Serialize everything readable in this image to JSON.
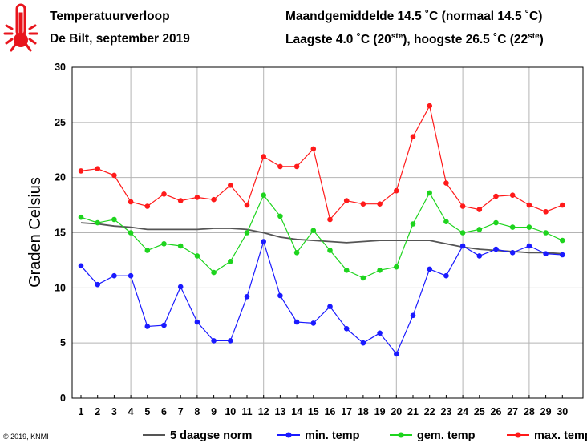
{
  "header": {
    "title": "Temperatuurverloop",
    "subtitle": "De Bilt, september 2019",
    "summary1": "Maandgemiddelde 14.5 ˚C (normaal 14.5 ˚C)",
    "summary2_prefix": "Laagste 4.0 ˚C (20",
    "summary2_sup1": "ste",
    "summary2_mid": "), hoogste 26.5 ˚C (22",
    "summary2_sup2": "ste",
    "summary2_suffix": ")"
  },
  "logo": {
    "icon": "thermometer-icon",
    "color": "#e8141c"
  },
  "footer": {
    "copyright": "© 2019, KNMI"
  },
  "chart_data": {
    "type": "line",
    "ylabel": "Graden Celsius",
    "ylim": [
      0,
      30
    ],
    "yticks": [
      0,
      5,
      10,
      15,
      20,
      25,
      30
    ],
    "x": [
      1,
      2,
      3,
      4,
      5,
      6,
      7,
      8,
      9,
      10,
      11,
      12,
      13,
      14,
      15,
      16,
      17,
      18,
      19,
      20,
      21,
      22,
      23,
      24,
      25,
      26,
      27,
      28,
      29,
      30
    ],
    "grid": true,
    "legend_position": "bottom",
    "series": [
      {
        "name": "5 daagse norm",
        "color": "#555555",
        "markers": false,
        "values": [
          15.9,
          15.8,
          15.6,
          15.5,
          15.3,
          15.3,
          15.3,
          15.3,
          15.4,
          15.4,
          15.3,
          15.0,
          14.6,
          14.4,
          14.3,
          14.2,
          14.1,
          14.2,
          14.3,
          14.3,
          14.3,
          14.3,
          14.0,
          13.7,
          13.5,
          13.4,
          13.3,
          13.2,
          13.2,
          13.1
        ]
      },
      {
        "name": "min. temp",
        "color": "#1a1aff",
        "markers": true,
        "values": [
          12.0,
          10.3,
          11.1,
          11.1,
          6.5,
          6.6,
          10.1,
          6.9,
          5.2,
          5.2,
          9.2,
          14.2,
          9.3,
          6.9,
          6.8,
          8.3,
          6.3,
          5.0,
          5.9,
          4.0,
          7.5,
          11.7,
          11.1,
          13.8,
          12.9,
          13.5,
          13.2,
          13.8,
          13.1,
          13.0
        ]
      },
      {
        "name": "gem. temp",
        "color": "#1ed41e",
        "markers": true,
        "values": [
          16.4,
          15.9,
          16.2,
          15.0,
          13.4,
          14.0,
          13.8,
          12.9,
          11.4,
          12.4,
          15.0,
          18.4,
          16.5,
          13.2,
          15.2,
          13.4,
          11.6,
          10.9,
          11.6,
          11.9,
          15.8,
          18.6,
          16.0,
          15.0,
          15.3,
          15.9,
          15.5,
          15.5,
          15.0,
          14.3
        ]
      },
      {
        "name": "max. temp",
        "color": "#ff1a1a",
        "markers": true,
        "values": [
          20.6,
          20.8,
          20.2,
          17.8,
          17.4,
          18.5,
          17.9,
          18.2,
          18.0,
          19.3,
          17.5,
          21.9,
          21.0,
          21.0,
          22.6,
          16.2,
          17.9,
          17.6,
          17.6,
          18.8,
          23.7,
          26.5,
          19.5,
          17.4,
          17.1,
          18.3,
          18.4,
          17.5,
          16.9,
          17.5
        ]
      }
    ]
  }
}
